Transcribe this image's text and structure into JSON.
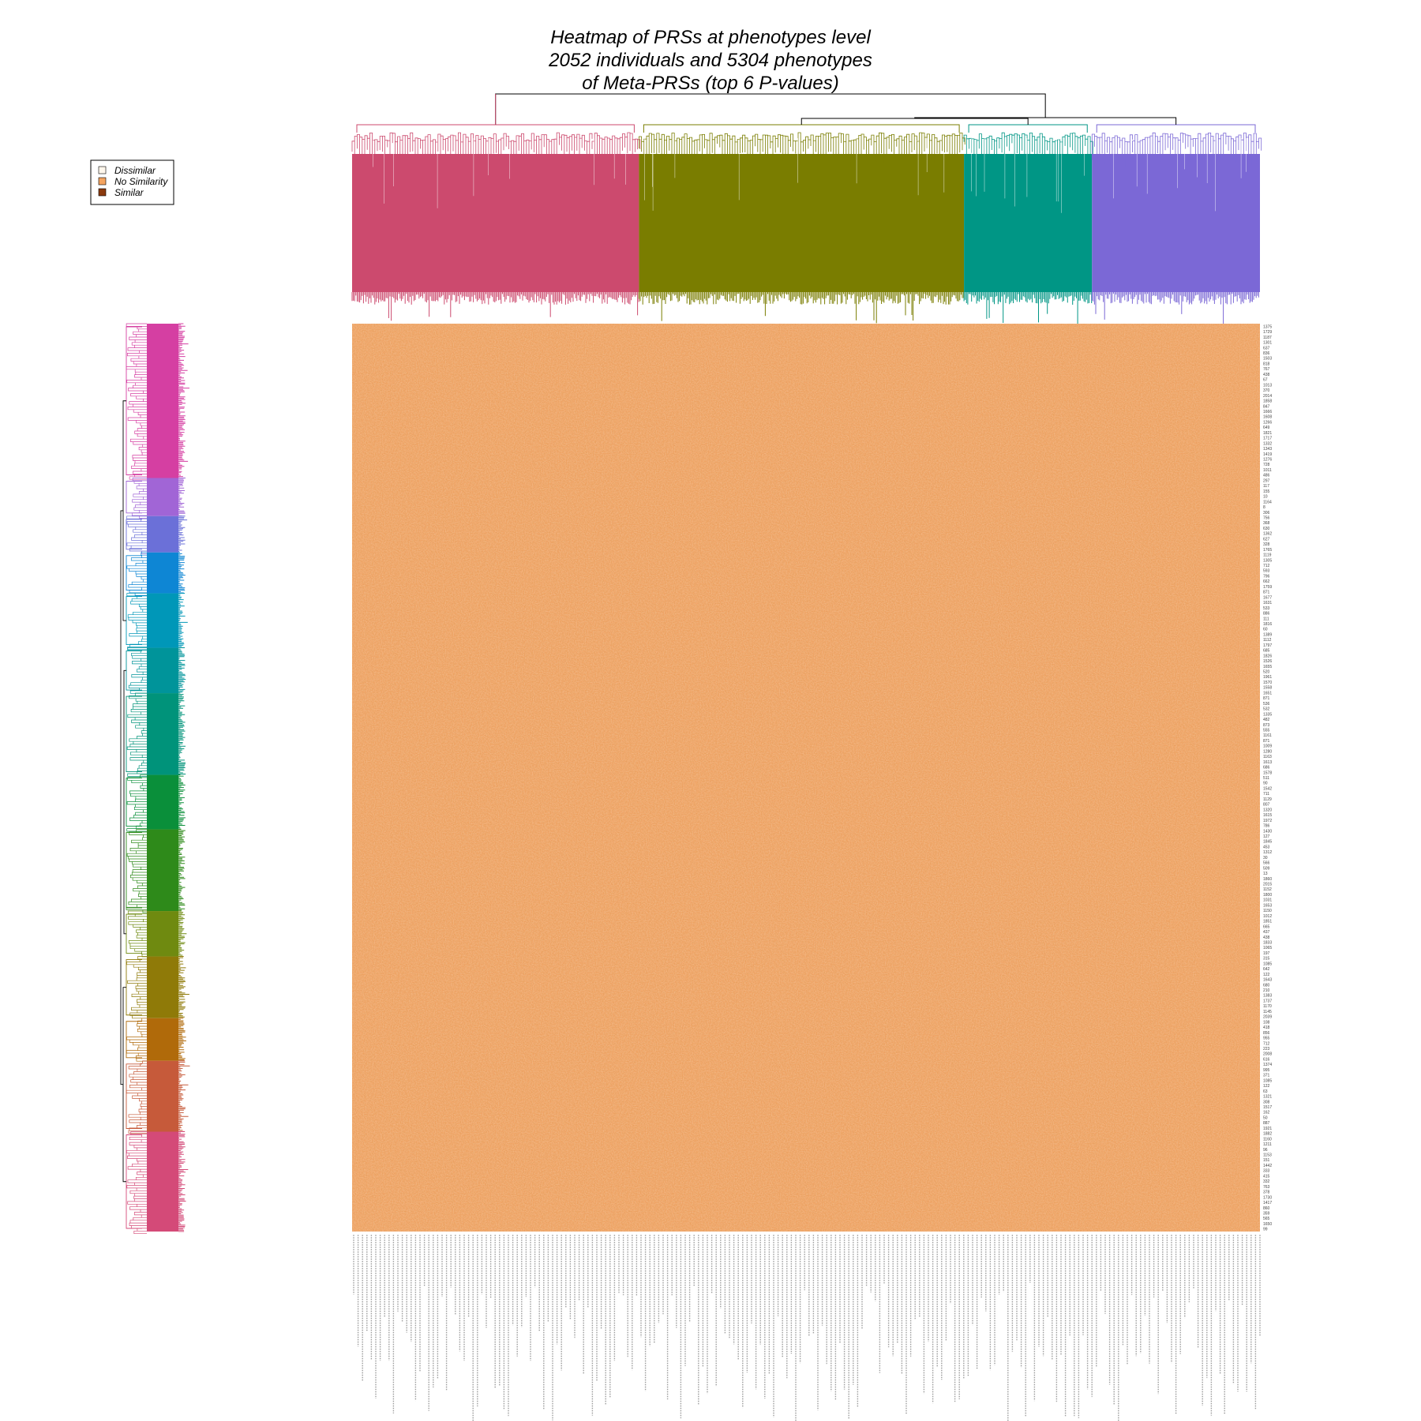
{
  "chart_data": {
    "type": "heatmap",
    "title": [
      "Heatmap of PRSs at phenotypes level",
      "2052 individuals and 5304 phenotypes",
      "of Meta-PRSs (top 6 P-values)"
    ],
    "legend": {
      "placement": "top-left",
      "entries": [
        {
          "label": "Dissimilar",
          "color": "#fff7ec"
        },
        {
          "label": "No Similarity",
          "color": "#f4a460"
        },
        {
          "label": "Similar",
          "color": "#8b3a0e"
        }
      ]
    },
    "heatmap_base_color": "#f5a66a",
    "column_clusters": [
      {
        "color": "#cc4a6e",
        "share": 0.316
      },
      {
        "color": "#7a7d00",
        "share": 0.358
      },
      {
        "color": "#009685",
        "share": 0.141
      },
      {
        "color": "#7b68d6",
        "share": 0.185
      }
    ],
    "row_clusters": [
      {
        "color": "#d53fa2",
        "share": 0.17
      },
      {
        "color": "#a165d6",
        "share": 0.042
      },
      {
        "color": "#6b70d8",
        "share": 0.04
      },
      {
        "color": "#0e86d4",
        "share": 0.045
      },
      {
        "color": "#0097b8",
        "share": 0.06
      },
      {
        "color": "#00949a",
        "share": 0.05
      },
      {
        "color": "#00937a",
        "share": 0.09
      },
      {
        "color": "#0a8f3a",
        "share": 0.06
      },
      {
        "color": "#2e8a1a",
        "share": 0.09
      },
      {
        "color": "#6f8a10",
        "share": 0.05
      },
      {
        "color": "#8f7a08",
        "share": 0.068
      },
      {
        "color": "#b06a0a",
        "share": 0.047
      },
      {
        "color": "#c65a3a",
        "share": 0.078
      },
      {
        "color": "#d44a78",
        "share": 0.11
      }
    ],
    "row_labels": [
      "1375",
      "1729",
      "1187",
      "1301",
      "637",
      "836",
      "1503",
      "818",
      "767",
      "438",
      "67",
      "1013",
      "370",
      "2014",
      "1858",
      "847",
      "1666",
      "1608",
      "1266",
      "649",
      "1821",
      "1717",
      "1332",
      "1343",
      "1419",
      "1276",
      "728",
      "1011",
      "486",
      "297",
      "117",
      "155",
      "10",
      "1164",
      "8",
      "306",
      "756",
      "368",
      "630",
      "1362",
      "627",
      "328",
      "1765",
      "1119",
      "1305",
      "712",
      "593",
      "796",
      "662",
      "1759",
      "871",
      "1677",
      "1631",
      "533",
      "886",
      "111",
      "1816",
      "60",
      "1389",
      "1112",
      "1797",
      "685",
      "1826",
      "1526",
      "1655",
      "520",
      "1961",
      "1570",
      "1558",
      "1651",
      "871",
      "536",
      "532",
      "1335",
      "482",
      "873",
      "555",
      "1161",
      "871",
      "1009",
      "1280",
      "1163",
      "1613",
      "686",
      "1578",
      "511",
      "90",
      "1542",
      "711",
      "1129",
      "807",
      "1320",
      "1615",
      "1972",
      "786",
      "1430",
      "127",
      "1845",
      "453",
      "1312",
      "30",
      "566",
      "509",
      "13",
      "1860",
      "2015",
      "1152",
      "1800",
      "1031",
      "1653",
      "1150",
      "1012",
      "1851",
      "665",
      "437",
      "438",
      "1833",
      "1065",
      "197",
      "315",
      "1085",
      "642",
      "122",
      "1643",
      "680",
      "210",
      "1383",
      "1737",
      "1170",
      "1145",
      "2039",
      "108",
      "418",
      "856",
      "955",
      "712",
      "223",
      "2008",
      "616",
      "1374",
      "995",
      "371",
      "1085",
      "122",
      "63",
      "1321",
      "308",
      "1517",
      "162",
      "50",
      "887",
      "1921",
      "1882",
      "1160",
      "1211",
      "96",
      "1153",
      "151",
      "1442",
      "333",
      "415",
      "332",
      "763",
      "378",
      "1730",
      "1417",
      "860",
      "359",
      "565",
      "1650",
      "99"
    ],
    "x_axis_labels_note": ""
  }
}
